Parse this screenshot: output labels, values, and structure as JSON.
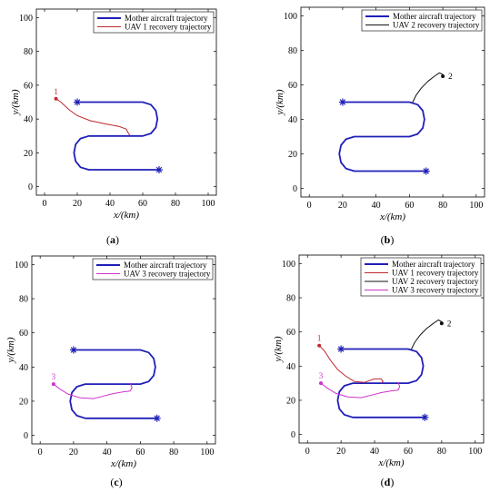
{
  "colors": {
    "mother": "#1f1fb8",
    "uav1": "#c0282d",
    "uav2": "#111111",
    "uav3": "#cc33cc"
  },
  "chart_data": [
    {
      "type": "line",
      "caption": "(a)",
      "xlabel": "x/(km)",
      "ylabel": "y/(km)",
      "xlim": [
        -5,
        105
      ],
      "ylim": [
        -5,
        105
      ],
      "xticks": [
        "0",
        "20",
        "40",
        "60",
        "80",
        "100"
      ],
      "yticks": [
        "0",
        "20",
        "40",
        "60",
        "80",
        "100"
      ],
      "legend_position": "top-right",
      "series": [
        {
          "name": "Mother aircraft trajectory",
          "key": "mother",
          "color": "#1f1fb8",
          "points": [
            [
              20,
              50
            ],
            [
              60,
              50
            ],
            [
              65,
              48.5
            ],
            [
              68,
              45
            ],
            [
              69,
              40
            ],
            [
              68,
              35
            ],
            [
              65,
              31.5
            ],
            [
              60,
              30
            ],
            [
              27,
              30
            ],
            [
              22,
              28.5
            ],
            [
              19,
              25
            ],
            [
              18,
              20
            ],
            [
              19,
              15
            ],
            [
              22,
              11.5
            ],
            [
              27,
              10
            ],
            [
              70,
              10
            ]
          ],
          "markers": [
            [
              20,
              50
            ],
            [
              70,
              10
            ]
          ]
        },
        {
          "name": "UAV 1 recovery trajectory",
          "key": "uav1",
          "color": "#c0282d",
          "points": [
            [
              7,
              52
            ],
            [
              10,
              50
            ],
            [
              15,
              45.5
            ],
            [
              20,
              42
            ],
            [
              28,
              39
            ],
            [
              38,
              37
            ],
            [
              46,
              35.5
            ],
            [
              50,
              34
            ],
            [
              51,
              32
            ],
            [
              52,
              30.5
            ]
          ],
          "start": [
            7,
            52
          ],
          "label": "1"
        }
      ]
    },
    {
      "type": "line",
      "caption": "(b)",
      "xlabel": "x/(km)",
      "ylabel": "y/(km)",
      "xlim": [
        -5,
        105
      ],
      "ylim": [
        -5,
        105
      ],
      "xticks": [
        "0",
        "20",
        "40",
        "60",
        "80",
        "100"
      ],
      "yticks": [
        "0",
        "20",
        "40",
        "60",
        "80",
        "100"
      ],
      "legend_position": "top-right",
      "series": [
        {
          "name": "Mother aircraft trajectory",
          "key": "mother",
          "color": "#1f1fb8",
          "points": [
            [
              20,
              50
            ],
            [
              60,
              50
            ],
            [
              65,
              48.5
            ],
            [
              68,
              45
            ],
            [
              69,
              40
            ],
            [
              68,
              35
            ],
            [
              65,
              31.5
            ],
            [
              60,
              30
            ],
            [
              27,
              30
            ],
            [
              22,
              28.5
            ],
            [
              19,
              25
            ],
            [
              18,
              20
            ],
            [
              19,
              15
            ],
            [
              22,
              11.5
            ],
            [
              27,
              10
            ],
            [
              70,
              10
            ]
          ],
          "markers": [
            [
              20,
              50
            ],
            [
              70,
              10
            ]
          ]
        },
        {
          "name": "UAV 2 recovery trajectory",
          "key": "uav2",
          "color": "#111111",
          "points": [
            [
              62,
              50
            ],
            [
              64,
              54
            ],
            [
              67,
              58
            ],
            [
              71,
              62
            ],
            [
              75,
              65
            ],
            [
              78,
              67
            ],
            [
              80,
              66
            ],
            [
              80,
              65
            ]
          ],
          "start": [
            80,
            65
          ],
          "label": "2"
        }
      ]
    },
    {
      "type": "line",
      "caption": "(c)",
      "xlabel": "x/(km)",
      "ylabel": "y/(km)",
      "xlim": [
        -5,
        105
      ],
      "ylim": [
        -5,
        105
      ],
      "xticks": [
        "0",
        "20",
        "40",
        "60",
        "80",
        "100"
      ],
      "yticks": [
        "0",
        "20",
        "40",
        "60",
        "80",
        "100"
      ],
      "legend_position": "top-right",
      "series": [
        {
          "name": "Mother aircraft trajectory",
          "key": "mother",
          "color": "#1f1fb8",
          "points": [
            [
              20,
              50
            ],
            [
              60,
              50
            ],
            [
              65,
              48.5
            ],
            [
              68,
              45
            ],
            [
              69,
              40
            ],
            [
              68,
              35
            ],
            [
              65,
              31.5
            ],
            [
              60,
              30
            ],
            [
              27,
              30
            ],
            [
              22,
              28.5
            ],
            [
              19,
              25
            ],
            [
              18,
              20
            ],
            [
              19,
              15
            ],
            [
              22,
              11.5
            ],
            [
              27,
              10
            ],
            [
              70,
              10
            ]
          ],
          "markers": [
            [
              20,
              50
            ],
            [
              70,
              10
            ]
          ]
        },
        {
          "name": "UAV 3 recovery trajectory",
          "key": "uav3",
          "color": "#cc33cc",
          "points": [
            [
              8,
              30
            ],
            [
              12,
              27
            ],
            [
              17,
              24
            ],
            [
              24,
              22
            ],
            [
              32,
              21.5
            ],
            [
              38,
              23
            ],
            [
              44,
              24.5
            ],
            [
              50,
              25.5
            ],
            [
              54,
              26
            ],
            [
              55,
              28
            ],
            [
              54,
              30.5
            ]
          ],
          "start": [
            8,
            30
          ],
          "label": "3"
        }
      ]
    },
    {
      "type": "line",
      "caption": "(d)",
      "xlabel": "x/(km)",
      "ylabel": "y/(km)",
      "xlim": [
        -5,
        105
      ],
      "ylim": [
        -5,
        105
      ],
      "xticks": [
        "0",
        "20",
        "40",
        "60",
        "80",
        "100"
      ],
      "yticks": [
        "0",
        "20",
        "40",
        "60",
        "80",
        "100"
      ],
      "legend_position": "top-right",
      "series": [
        {
          "name": "Mother aircraft trajectory",
          "key": "mother",
          "color": "#1f1fb8",
          "points": [
            [
              20,
              50
            ],
            [
              60,
              50
            ],
            [
              65,
              48.5
            ],
            [
              68,
              45
            ],
            [
              69,
              40
            ],
            [
              68,
              35
            ],
            [
              65,
              31.5
            ],
            [
              60,
              30
            ],
            [
              27,
              30
            ],
            [
              22,
              28.5
            ],
            [
              19,
              25
            ],
            [
              18,
              20
            ],
            [
              19,
              15
            ],
            [
              22,
              11.5
            ],
            [
              27,
              10
            ],
            [
              70,
              10
            ]
          ],
          "markers": [
            [
              20,
              50
            ],
            [
              70,
              10
            ]
          ]
        },
        {
          "name": "UAV 1 recovery trajectory",
          "key": "uav1",
          "color": "#c0282d",
          "points": [
            [
              7,
              52
            ],
            [
              10,
              49
            ],
            [
              14,
              43
            ],
            [
              18,
              38
            ],
            [
              23,
              34
            ],
            [
              28,
              31
            ],
            [
              34,
              30.5
            ],
            [
              40,
              32.5
            ],
            [
              44,
              32.5
            ],
            [
              45,
              31
            ],
            [
              44,
              30
            ]
          ],
          "start": [
            7,
            52
          ],
          "label": "1"
        },
        {
          "name": "UAV 2 recovery trajectory",
          "key": "uav2",
          "color": "#111111",
          "points": [
            [
              62,
              50
            ],
            [
              64,
              54
            ],
            [
              67,
              58
            ],
            [
              71,
              62
            ],
            [
              75,
              65
            ],
            [
              78,
              67
            ],
            [
              80,
              66
            ],
            [
              80,
              65
            ]
          ],
          "start": [
            80,
            65
          ],
          "label": "2"
        },
        {
          "name": "UAV 3 recovery trajectory",
          "key": "uav3",
          "color": "#cc33cc",
          "points": [
            [
              8,
              30
            ],
            [
              12,
              27
            ],
            [
              17,
              24
            ],
            [
              24,
              22
            ],
            [
              32,
              21.5
            ],
            [
              38,
              23
            ],
            [
              44,
              24.5
            ],
            [
              50,
              25.5
            ],
            [
              54,
              26
            ],
            [
              55,
              28
            ],
            [
              54,
              30.5
            ]
          ],
          "start": [
            8,
            30
          ],
          "label": "3"
        }
      ]
    }
  ]
}
